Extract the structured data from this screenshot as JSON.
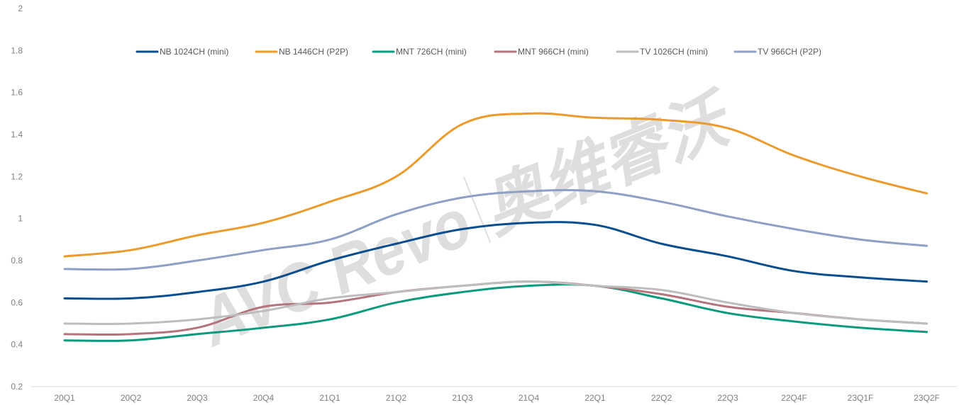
{
  "chart_data": {
    "type": "line",
    "title": "",
    "xlabel": "",
    "ylabel": "",
    "categories": [
      "20Q1",
      "20Q2",
      "20Q3",
      "20Q4",
      "21Q1",
      "21Q2",
      "21Q3",
      "21Q4",
      "22Q1",
      "22Q2",
      "22Q3",
      "22Q4F",
      "23Q1F",
      "23Q2F"
    ],
    "ylim": [
      0.2,
      2
    ],
    "yticks": [
      "0.2",
      "0.4",
      "0.6",
      "0.8",
      "1",
      "1.2",
      "1.4",
      "1.6",
      "1.8",
      "2"
    ],
    "grid": false,
    "legend_position": "top",
    "series": [
      {
        "name": "NB 1024CH (mini)",
        "color": "#0a4e8f",
        "values": [
          0.62,
          0.62,
          0.65,
          0.7,
          0.8,
          0.88,
          0.95,
          0.98,
          0.97,
          0.88,
          0.82,
          0.75,
          0.72,
          0.7
        ]
      },
      {
        "name": "NB 1446CH (P2P)",
        "color": "#ec9a2a",
        "values": [
          0.82,
          0.85,
          0.92,
          0.98,
          1.08,
          1.2,
          1.45,
          1.5,
          1.48,
          1.47,
          1.43,
          1.3,
          1.2,
          1.12
        ]
      },
      {
        "name": "MNT 726CH (mini)",
        "color": "#0a9a7c",
        "values": [
          0.42,
          0.42,
          0.45,
          0.48,
          0.52,
          0.6,
          0.65,
          0.68,
          0.68,
          0.62,
          0.55,
          0.51,
          0.48,
          0.46
        ]
      },
      {
        "name": "MNT 966CH (mini)",
        "color": "#b5737a",
        "values": [
          0.45,
          0.45,
          0.48,
          0.58,
          0.6,
          0.65,
          0.68,
          0.7,
          0.68,
          0.64,
          0.58,
          0.55,
          0.52,
          0.5
        ]
      },
      {
        "name": "TV 1026CH (mini)",
        "color": "#bdbdbd",
        "values": [
          0.5,
          0.5,
          0.52,
          0.56,
          0.62,
          0.65,
          0.68,
          0.7,
          0.68,
          0.66,
          0.6,
          0.55,
          0.52,
          0.5
        ]
      },
      {
        "name": "TV 966CH (P2P)",
        "color": "#8ea0c6",
        "values": [
          0.76,
          0.76,
          0.8,
          0.85,
          0.9,
          1.02,
          1.1,
          1.13,
          1.13,
          1.08,
          1.01,
          0.95,
          0.9,
          0.87
        ]
      }
    ]
  },
  "watermark": {
    "text": "AVC Revo",
    "cjk_text": "奥维睿沃",
    "color": "#d9d9d9"
  },
  "colors": {
    "axis_line": "#d9d9d9",
    "tick_text": "#7f7f7f",
    "legend_text": "#595959"
  }
}
